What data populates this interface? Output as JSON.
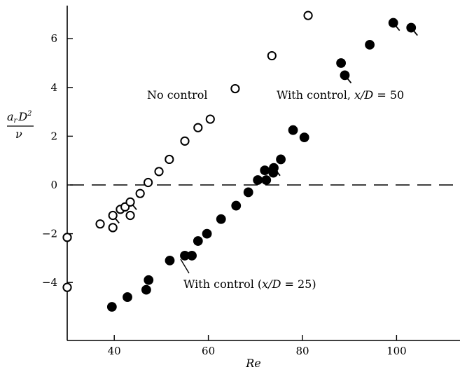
{
  "chart_data": {
    "type": "scatter",
    "xlabel": "Re",
    "ylabel": {
      "numerator": "a",
      "subscript": "r",
      "numerator_rest": "D",
      "superscript": "2",
      "denominator": "ν"
    },
    "xlim": [
      30,
      115
    ],
    "ylim": [
      -6,
      7.5
    ],
    "x_ticks": [
      40,
      60,
      80,
      100
    ],
    "y_ticks": [
      -4,
      -2,
      0,
      2,
      4,
      6
    ],
    "x_tick_labels": [
      "40",
      "60",
      "80",
      "100"
    ],
    "y_tick_labels": [
      "−4",
      "−2",
      "0",
      "2",
      "4",
      "6"
    ],
    "reference_line": {
      "y": 0,
      "style": "dashed"
    },
    "series": [
      {
        "name": "No control",
        "marker": "open-circle",
        "points": [
          [
            30,
            -2.15
          ],
          [
            30,
            -4.2
          ],
          [
            37,
            -1.6
          ],
          [
            39.7,
            -1.25
          ],
          [
            39.7,
            -1.75
          ],
          [
            41.3,
            -1.0
          ],
          [
            42.3,
            -0.9
          ],
          [
            43.4,
            -0.7
          ],
          [
            43.4,
            -1.25
          ],
          [
            45.5,
            -0.35
          ],
          [
            47.2,
            0.1
          ],
          [
            49.5,
            0.55
          ],
          [
            51.7,
            1.05
          ],
          [
            55.0,
            1.8
          ],
          [
            57.8,
            2.35
          ],
          [
            60.4,
            2.7
          ],
          [
            65.7,
            3.95
          ],
          [
            73.5,
            5.3
          ],
          [
            81.2,
            6.95
          ]
        ]
      },
      {
        "name": "With control (x/D = 25)",
        "marker": "filled-circle",
        "points": [
          [
            39.5,
            -5.0
          ],
          [
            42.8,
            -4.6
          ],
          [
            46.8,
            -4.3
          ],
          [
            47.3,
            -3.9
          ],
          [
            51.8,
            -3.1
          ],
          [
            55.0,
            -2.9
          ],
          [
            56.5,
            -2.9
          ],
          [
            57.8,
            -2.3
          ],
          [
            59.7,
            -2.0
          ],
          [
            62.7,
            -1.4
          ],
          [
            65.9,
            -0.85
          ],
          [
            68.5,
            -0.3
          ],
          [
            70.5,
            0.2
          ],
          [
            72.0,
            0.6
          ],
          [
            72.3,
            0.2
          ],
          [
            73.8,
            0.5
          ],
          [
            73.9,
            0.7
          ],
          [
            75.4,
            1.05
          ],
          [
            78.0,
            2.25
          ],
          [
            80.4,
            1.95
          ]
        ]
      },
      {
        "name": "With control, x/D = 50",
        "marker": "filled-circle",
        "points": [
          [
            88.2,
            5.0
          ],
          [
            89.0,
            4.5
          ],
          [
            94.3,
            5.75
          ],
          [
            99.3,
            6.65
          ],
          [
            103.1,
            6.45
          ]
        ]
      }
    ],
    "flagged_points": [
      {
        "x": 39.7,
        "y": -1.25,
        "dir": "down"
      },
      {
        "x": 43.4,
        "y": -0.7,
        "dir": "down"
      },
      {
        "x": 73.9,
        "y": 0.7,
        "dir": "down"
      },
      {
        "x": 89.0,
        "y": 4.5,
        "dir": "down"
      },
      {
        "x": 99.3,
        "y": 6.65,
        "dir": "down"
      },
      {
        "x": 103.1,
        "y": 6.45,
        "dir": "down"
      }
    ],
    "annotations": [
      {
        "text": "No control",
        "italic_part": ""
      },
      {
        "text": "With control, ",
        "math": "x/D",
        "rest": " = 50"
      },
      {
        "text": "With control (",
        "math": "x/D",
        "rest": " = 25)"
      }
    ]
  }
}
